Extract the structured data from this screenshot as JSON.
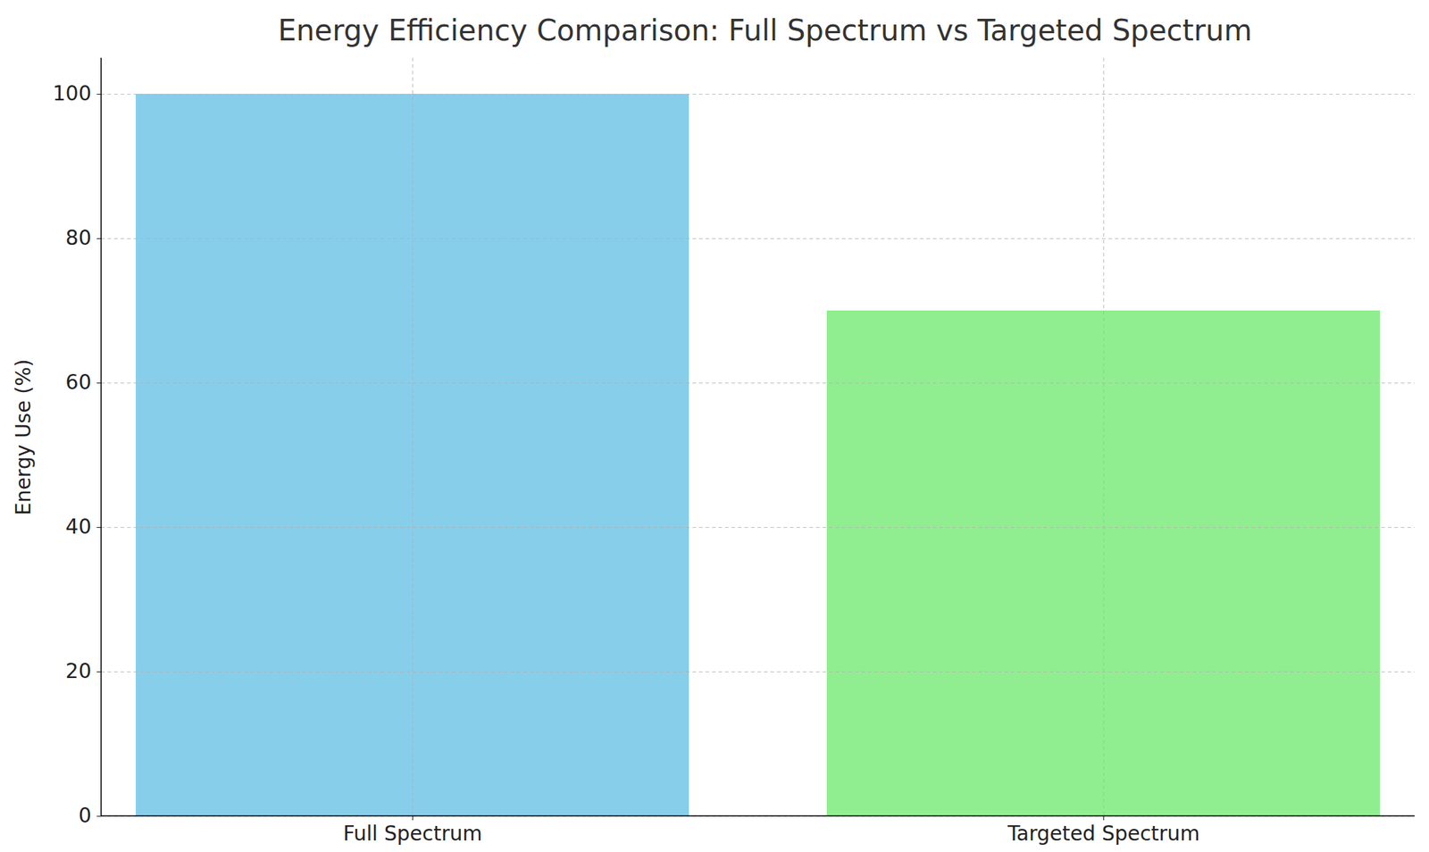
{
  "chart_data": {
    "type": "bar",
    "title": "Energy Efficiency Comparison: Full Spectrum vs Targeted Spectrum",
    "categories": [
      "Full Spectrum",
      "Targeted Spectrum"
    ],
    "values": [
      100,
      70
    ],
    "colors": [
      "#87ceeb",
      "#90ee90"
    ],
    "y_label": "Energy Use (%)",
    "ylim": [
      0,
      105
    ],
    "yticks": [
      0,
      20,
      40,
      60,
      80,
      100
    ],
    "grid": true
  }
}
